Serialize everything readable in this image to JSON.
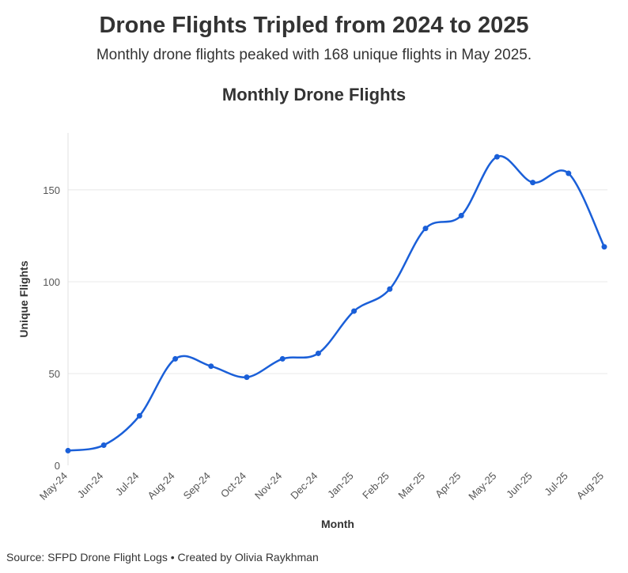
{
  "headline": "Drone Flights Tripled from 2024 to 2025",
  "subheadline": "Monthly drone flights peaked with 168 unique flights in May 2025.",
  "footer": "Source: SFPD Drone Flight Logs • Created by Olivia Raykhman",
  "chart_data": {
    "type": "line",
    "title": "Monthly Drone Flights",
    "xlabel": "Month",
    "ylabel": "Unique Flights",
    "categories": [
      "May-24",
      "Jun-24",
      "Jul-24",
      "Aug-24",
      "Sep-24",
      "Oct-24",
      "Nov-24",
      "Dec-24",
      "Jan-25",
      "Feb-25",
      "Mar-25",
      "Apr-25",
      "May-25",
      "Jun-25",
      "Jul-25",
      "Aug-25"
    ],
    "series": [
      {
        "values": [
          8,
          11,
          27,
          58,
          54,
          48,
          58,
          61,
          84,
          96,
          129,
          136,
          168,
          154,
          159,
          119
        ]
      }
    ],
    "ylim": [
      0,
      181
    ],
    "yticks": [
      0,
      50,
      100,
      150
    ],
    "grid": "horizontal",
    "line_color": "#1a5fd8",
    "smooth": true,
    "markers": true
  }
}
